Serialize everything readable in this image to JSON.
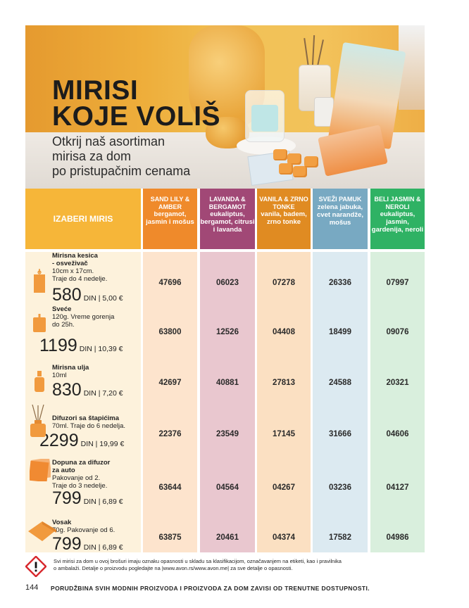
{
  "hero": {
    "title_line1": "MIRISI",
    "title_line2": "KOJE VOLIŠ",
    "subtitle_lines": [
      "Otkrij naš asortiman",
      "mirisa za dom",
      "po pristupačnim cenama"
    ]
  },
  "table": {
    "select_label": "IZABERI MIRIS",
    "columns": [
      {
        "name": "SAND LILY & AMBER",
        "notes": "bergamot, jasmin i mošus",
        "color": "#ef8a2b",
        "light": "#fde4cd"
      },
      {
        "name": "LAVANDA & BERGAMOT",
        "notes": "eukaliptus, bergamot, citrusi i lavanda",
        "color": "#a14876",
        "light": "#e9c7cf"
      },
      {
        "name": "VANILA & ZRNO TONKE",
        "notes": "vanila, badem, zrno tonke",
        "color": "#e08b22",
        "light": "#fbe0c2"
      },
      {
        "name": "SVEŽI PAMUK",
        "notes": "zelena jabuka, cvet narandže, mošus",
        "color": "#78a9c2",
        "light": "#dceaf1"
      },
      {
        "name": "BELI JASMIN & NEROLI",
        "notes": "eukaliptus, jasmin, gardenija, neroli",
        "color": "#2fb264",
        "light": "#d9efdd"
      }
    ],
    "rows": [
      {
        "name_lines": [
          "Mirisna kesica",
          "- osveživač"
        ],
        "desc_lines": [
          "10cm x 17cm.",
          "Traje do 4 nedelje."
        ],
        "price": "580",
        "din": "DIN | 5,00 €",
        "icon": "sachet-icon",
        "codes": [
          "47696",
          "06023",
          "07278",
          "26336",
          "07997"
        ]
      },
      {
        "name_lines": [
          "Sveće"
        ],
        "desc_lines": [
          "120g. Vreme gorenja",
          "do 25h."
        ],
        "price": "1199",
        "din": "DIN | 10,39 €",
        "icon": "candle-icon",
        "codes": [
          "63800",
          "12526",
          "04408",
          "18499",
          "09076"
        ]
      },
      {
        "name_lines": [
          "Mirisna ulja"
        ],
        "desc_lines": [
          "10ml"
        ],
        "price": "830",
        "din": "DIN | 7,20 €",
        "icon": "oil-bottle-icon",
        "codes": [
          "42697",
          "40881",
          "27813",
          "24588",
          "20321"
        ]
      },
      {
        "name_lines": [
          "Difuzori sa štapićima"
        ],
        "desc_lines": [
          "70ml. Traje do 6 nedelja."
        ],
        "price": "2299",
        "din": "DIN | 19,99 €",
        "icon": "diffuser-icon",
        "codes": [
          "22376",
          "23549",
          "17145",
          "31666",
          "04606"
        ]
      },
      {
        "name_lines": [
          "Dopuna za difuzor",
          "za auto"
        ],
        "desc_lines": [
          "Pakovanje od 2.",
          "Traje do 3 nedelje."
        ],
        "price": "799",
        "din": "DIN | 6,89 €",
        "icon": "car-refill-icon",
        "codes": [
          "63644",
          "04564",
          "04267",
          "03236",
          "04127"
        ]
      },
      {
        "name_lines": [
          "Vosak"
        ],
        "desc_lines": [
          "70g. Pakovanje od 6."
        ],
        "price": "799",
        "din": "DIN | 6,89 €",
        "icon": "wax-melt-icon",
        "codes": [
          "63875",
          "20461",
          "04374",
          "17582",
          "04986"
        ]
      }
    ]
  },
  "footer": {
    "warning_line1": "Svi mirisi za dom u ovoj brošuri imaju oznaku opasnosti u skladu sa klasifikacijom, označavanjem na etiketi, kao i pravilnika",
    "warning_line2": "o ambalaži. Detalje o proizvodu pogledajte na |www.avon.rs/www.avon.me| za sve detalje o opasnosti.",
    "page_number": "144",
    "bottom_text": "PORUDŽBINA SVIH MODNIH PROIZVODA I PROIZVODA ZA DOM ZAVISI OD TRENUTNE DOSTUPNOSTI."
  }
}
